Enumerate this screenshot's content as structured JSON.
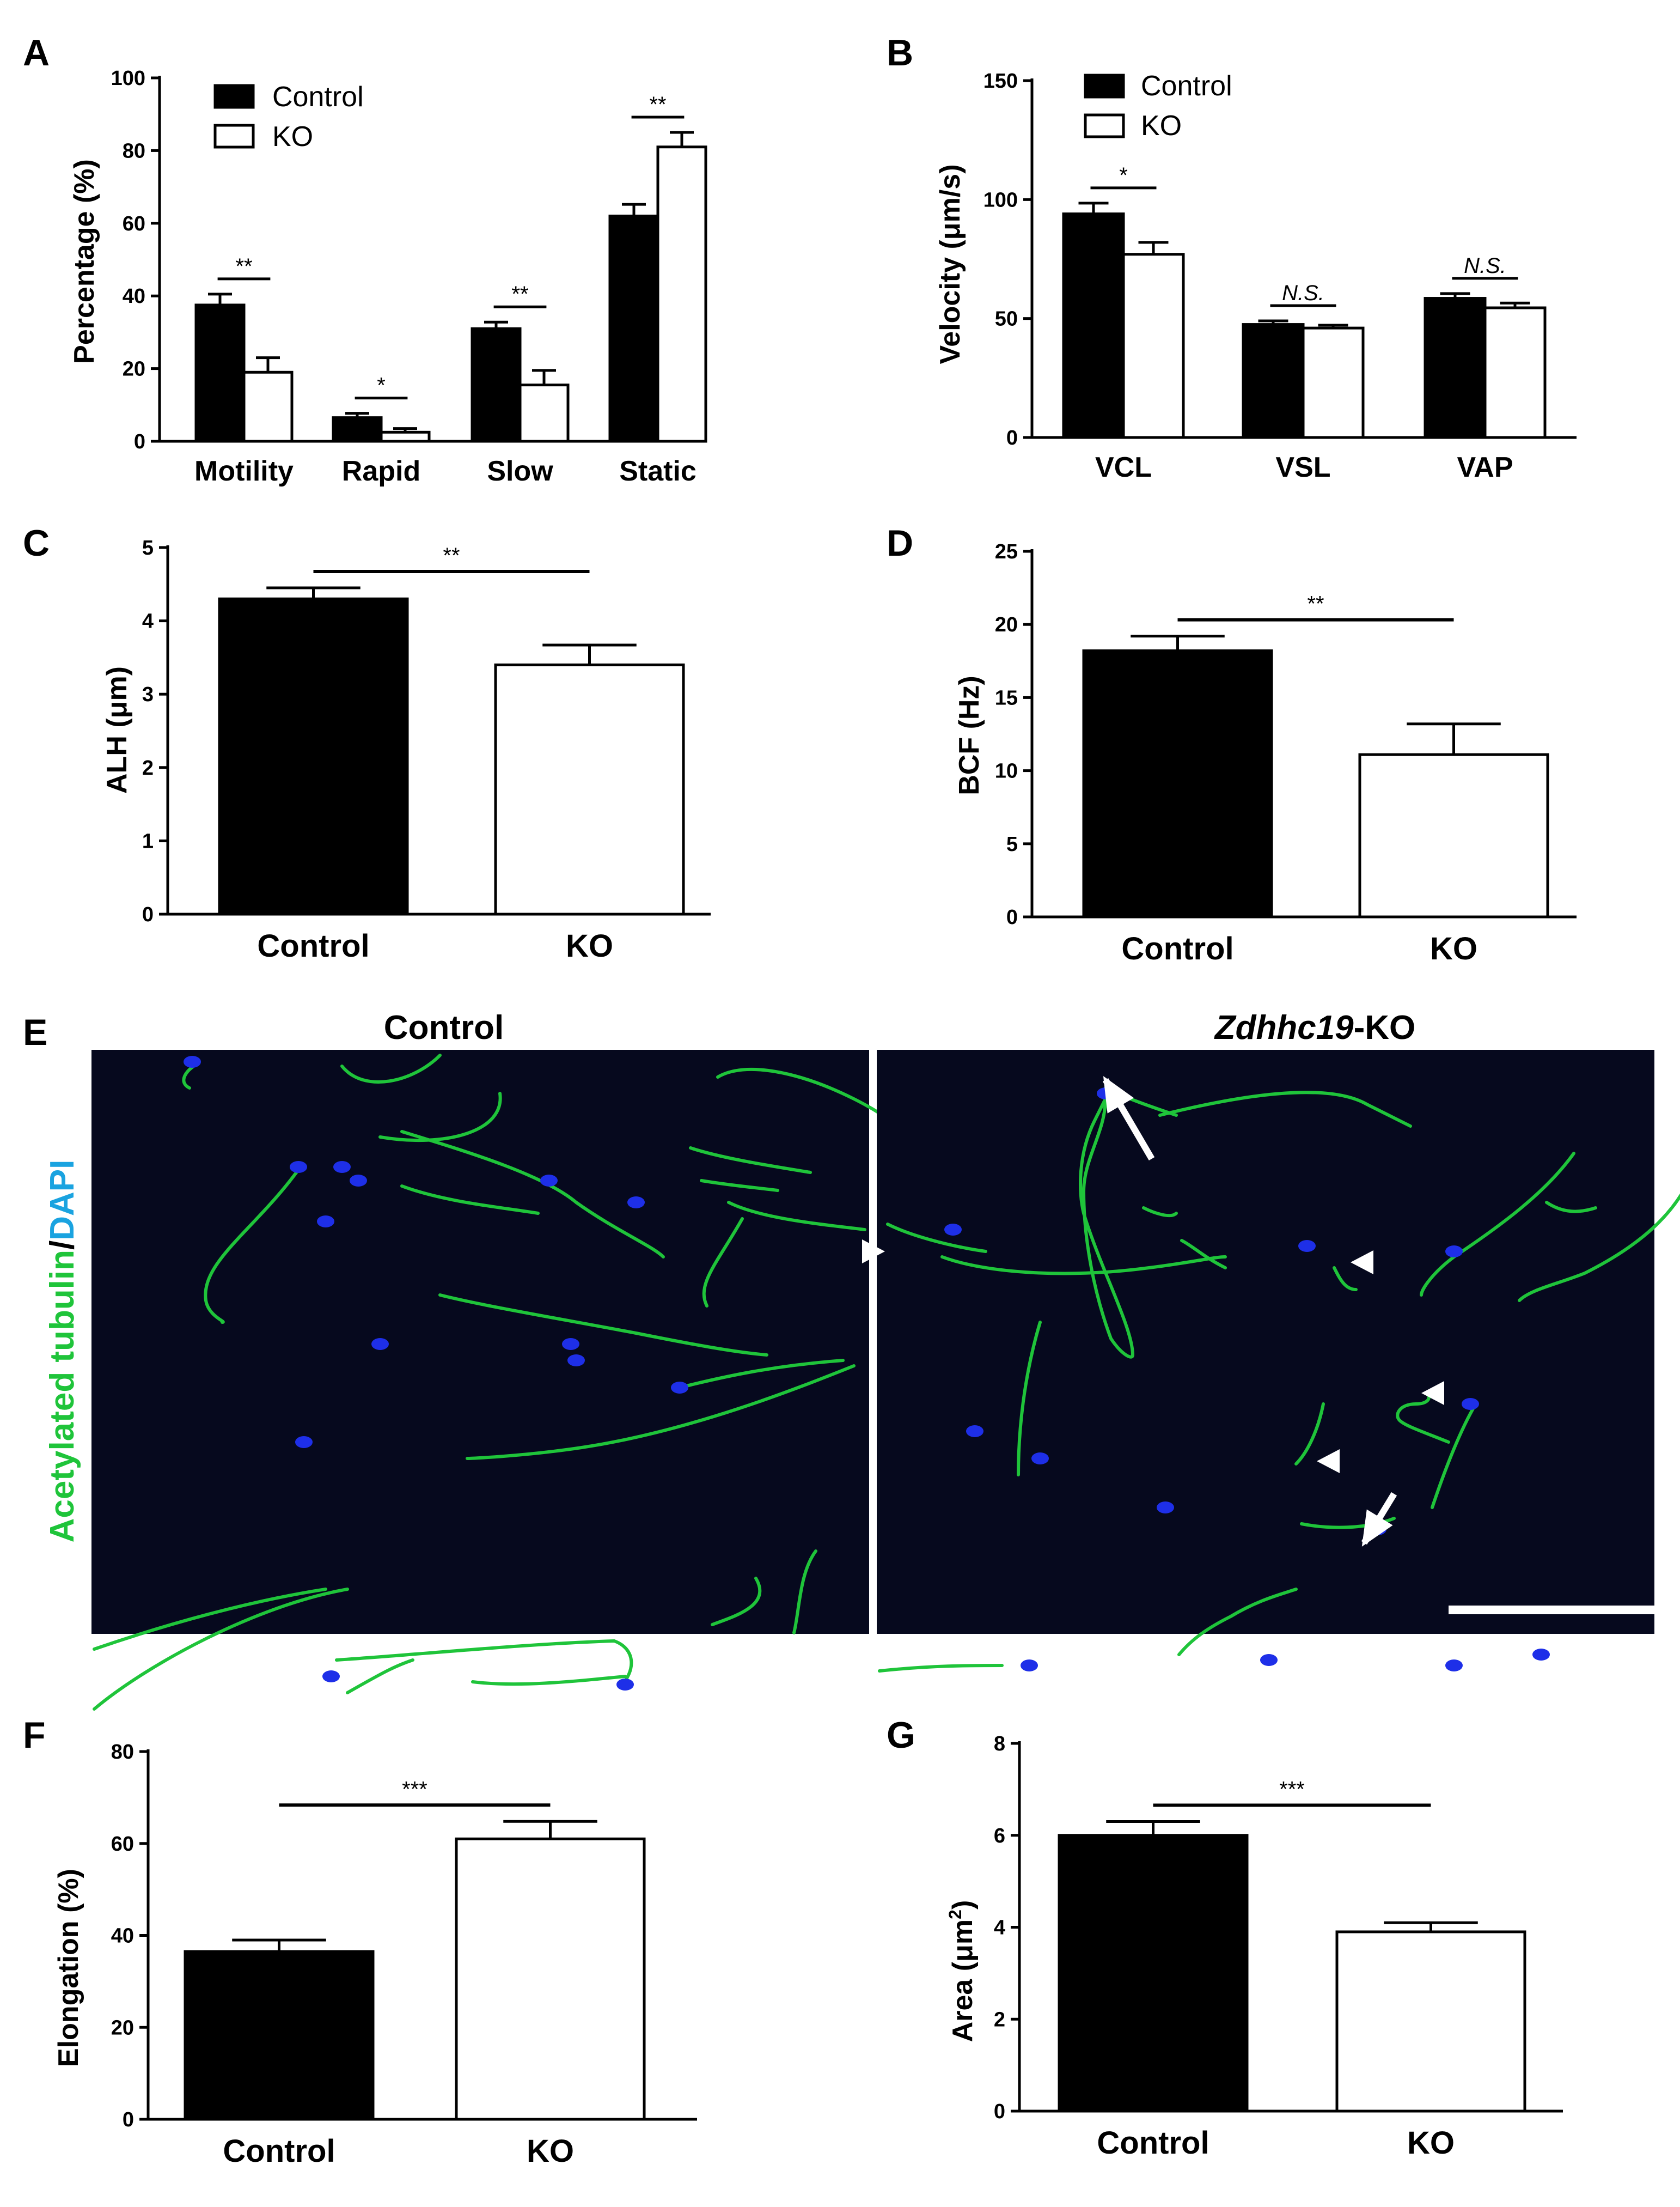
{
  "panels": {
    "A": {
      "letter": "A",
      "chart_data": {
        "type": "bar",
        "categories": [
          "Motility",
          "Rapid",
          "Slow",
          "Static"
        ],
        "series": [
          {
            "name": "Control",
            "values": [
              37.5,
              6.5,
              31,
              62
            ],
            "errors": [
              3,
              1.2,
              1.8,
              3.2
            ]
          },
          {
            "name": "KO",
            "values": [
              19,
              2.5,
              15.5,
              81
            ],
            "errors": [
              4,
              1,
              4,
              4
            ]
          }
        ],
        "ylabel": "Percentage (%)",
        "ylim": [
          0,
          100
        ],
        "yticks": [
          "0",
          "20",
          "40",
          "60",
          "80",
          "100"
        ],
        "significance": [
          "**",
          "*",
          "**",
          "**"
        ],
        "legend": "top-left"
      }
    },
    "B": {
      "letter": "B",
      "chart_data": {
        "type": "bar",
        "categories": [
          "VCL",
          "VSL",
          "VAP"
        ],
        "series": [
          {
            "name": "Control",
            "values": [
              94,
              47.5,
              58.5
            ],
            "errors": [
              4.5,
              1.5,
              2
            ]
          },
          {
            "name": "KO",
            "values": [
              77,
              46,
              54.5
            ],
            "errors": [
              5,
              1.2,
              2
            ]
          }
        ],
        "ylabel": "Velocity (μm/s)",
        "ylim": [
          0,
          150
        ],
        "yticks": [
          "0",
          "50",
          "100",
          "150"
        ],
        "significance": [
          "*",
          "N.S.",
          "N.S."
        ],
        "legend": "top-left"
      }
    },
    "C": {
      "letter": "C",
      "chart_data": {
        "type": "bar",
        "categories": [
          "Control",
          "KO"
        ],
        "values": [
          4.3,
          3.4
        ],
        "errors": [
          0.15,
          0.27
        ],
        "ylabel": "ALH (μm)",
        "ylim": [
          0,
          5
        ],
        "yticks": [
          "0",
          "1",
          "2",
          "3",
          "4",
          "5"
        ],
        "significance": "**"
      }
    },
    "D": {
      "letter": "D",
      "chart_data": {
        "type": "bar",
        "categories": [
          "Control",
          "KO"
        ],
        "values": [
          18.2,
          11.1
        ],
        "errors": [
          1.0,
          2.1
        ],
        "ylabel": "BCF (Hz)",
        "ylim": [
          0,
          25
        ],
        "yticks": [
          "0",
          "5",
          "10",
          "15",
          "20",
          "25"
        ],
        "significance": "**"
      }
    },
    "E": {
      "letter": "E",
      "left_title": "Control",
      "right_title_italic": "Zdhhc19",
      "right_title_suffix": "-KO",
      "stain_green": "Acetylated tubulin",
      "stain_slash": "/",
      "stain_blue": "DAPI",
      "colors": {
        "green": "#1fc43a",
        "blue": "#1aa3e0",
        "background": "#06091e",
        "nucleus": "#1e2fe8"
      }
    },
    "F": {
      "letter": "F",
      "chart_data": {
        "type": "bar",
        "categories": [
          "Control",
          "KO"
        ],
        "values": [
          36.5,
          61
        ],
        "errors": [
          2.5,
          3.8
        ],
        "ylabel": "Elongation (%)",
        "ylim": [
          0,
          80
        ],
        "yticks": [
          "0",
          "20",
          "40",
          "60",
          "80"
        ],
        "significance": "***"
      }
    },
    "G": {
      "letter": "G",
      "chart_data": {
        "type": "bar",
        "categories": [
          "Control",
          "KO"
        ],
        "values": [
          6.0,
          3.9
        ],
        "errors": [
          0.3,
          0.2
        ],
        "ylabel_main": "Area (μm",
        "ylabel_sup": "2",
        "ylabel_end": ")",
        "ylim": [
          0,
          8
        ],
        "yticks": [
          "0",
          "2",
          "4",
          "6",
          "8"
        ],
        "significance": "***"
      }
    }
  }
}
